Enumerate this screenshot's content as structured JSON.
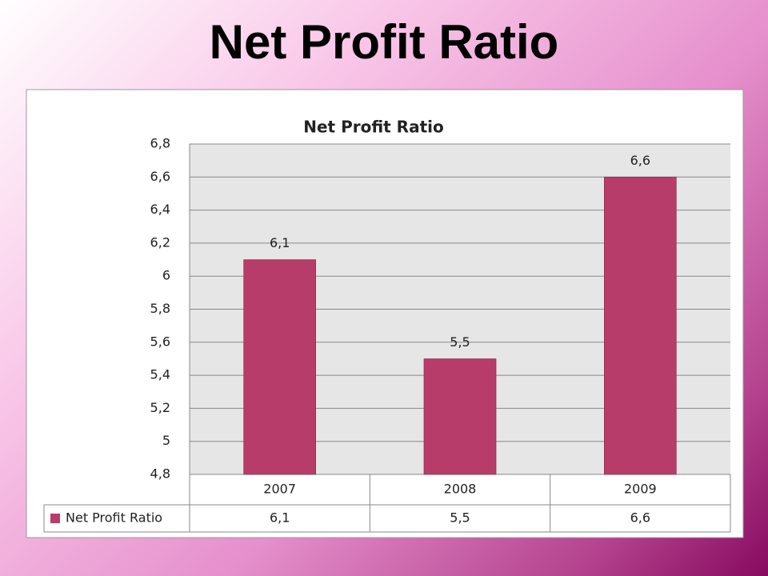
{
  "slide": {
    "title": "Net Profit Ratio"
  },
  "chart_data": {
    "type": "bar",
    "title": "Net Profit Ratio",
    "categories": [
      "2007",
      "2008",
      "2009"
    ],
    "series": [
      {
        "name": "Net Profit Ratio",
        "color": "#b83c6a",
        "values": [
          6.1,
          5.5,
          6.6
        ],
        "value_labels": [
          "6,1",
          "5,5",
          "6,6"
        ]
      }
    ],
    "ylim": [
      4.8,
      6.8
    ],
    "yticks": [
      {
        "value": 4.8,
        "label": "4,8"
      },
      5,
      {
        "value": 5.2,
        "label": "5,2"
      },
      {
        "value": 5.4,
        "label": "5,4"
      },
      {
        "value": 5.6,
        "label": "5,6"
      },
      {
        "value": 5.8,
        "label": "5,8"
      },
      6,
      {
        "value": 6.2,
        "label": "6,2"
      },
      {
        "value": 6.4,
        "label": "6,4"
      },
      {
        "value": 6.6,
        "label": "6,6"
      },
      {
        "value": 6.8,
        "label": "6,8"
      }
    ],
    "grid": true,
    "data_table": true
  }
}
